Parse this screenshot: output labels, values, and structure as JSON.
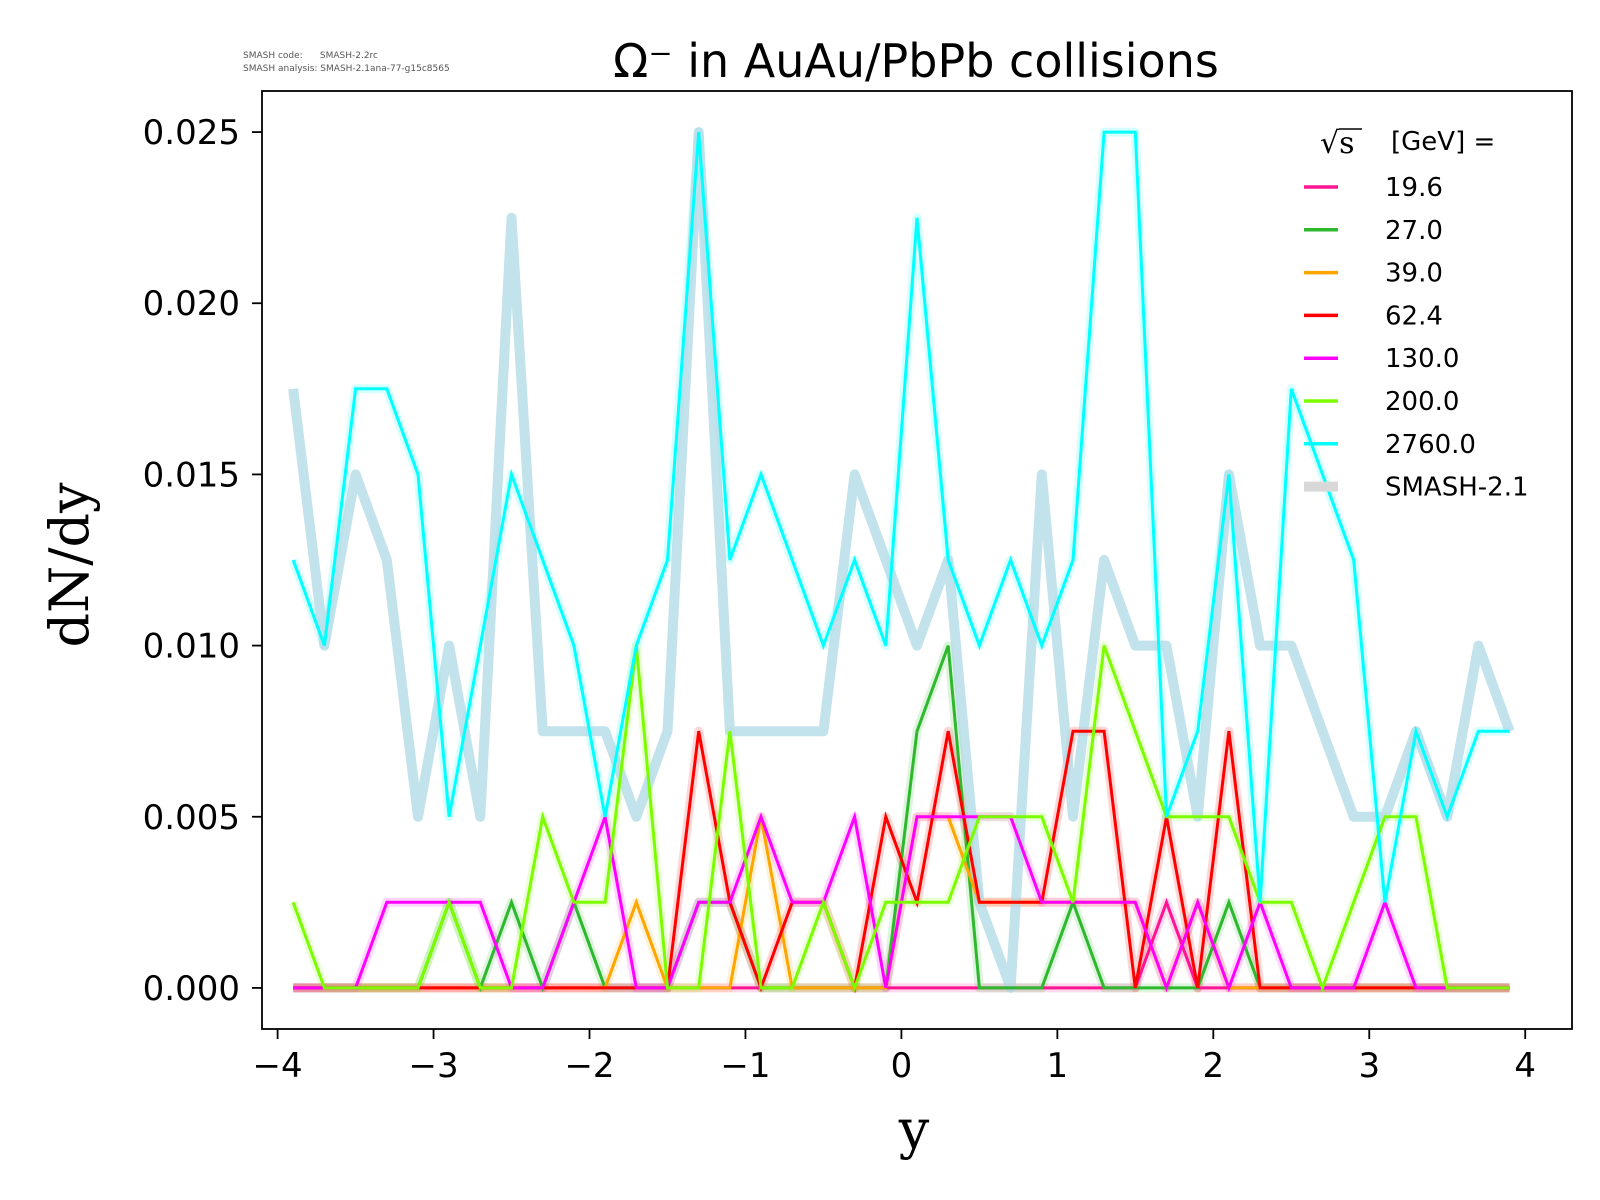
{
  "meta_text": {
    "line1": "SMASH code:      SMASH-2.2rc",
    "line2": "SMASH analysis: SMASH-2.1ana-77-g15c8565"
  },
  "chart_data": {
    "type": "line",
    "title": "Ω⁻ in AuAu/PbPb collisions",
    "xlabel": "y",
    "ylabel": "dN/dy",
    "xlim": [
      -4.1,
      4.3
    ],
    "ylim": [
      -0.0012,
      0.0262
    ],
    "xticks": [
      -4,
      -3,
      -2,
      -1,
      0,
      1,
      2,
      3,
      4
    ],
    "xtick_labels": [
      "−4",
      "−3",
      "−2",
      "−1",
      "0",
      "1",
      "2",
      "3",
      "4"
    ],
    "yticks": [
      0,
      0.005,
      0.01,
      0.015,
      0.02,
      0.025
    ],
    "ytick_labels": [
      "0.000",
      "0.005",
      "0.010",
      "0.015",
      "0.020",
      "0.025"
    ],
    "grid": false,
    "legend": {
      "placement": "top-right",
      "title_symbol": "√s",
      "title_text": "[GeV] ="
    },
    "x": [
      -3.9,
      -3.7,
      -3.5,
      -3.3,
      -3.1,
      -2.9,
      -2.7,
      -2.5,
      -2.3,
      -2.1,
      -1.9,
      -1.7,
      -1.5,
      -1.3,
      -1.1,
      -0.9,
      -0.7,
      -0.5,
      -0.3,
      -0.1,
      0.1,
      0.3,
      0.5,
      0.7,
      0.9,
      1.1,
      1.3,
      1.5,
      1.7,
      1.9,
      2.1,
      2.3,
      2.5,
      2.7,
      2.9,
      3.1,
      3.3,
      3.5,
      3.7,
      3.9
    ],
    "series": [
      {
        "name": "19.6",
        "color": "#ff1493",
        "values": [
          0,
          0,
          0,
          0,
          0,
          0,
          0,
          0,
          0,
          0,
          0,
          0,
          0,
          0,
          0,
          0,
          0,
          0,
          0,
          0,
          0,
          0,
          0,
          0,
          0,
          0,
          0,
          0,
          0.0025,
          0,
          0,
          0,
          0,
          0,
          0,
          0,
          0,
          0,
          0,
          0
        ]
      },
      {
        "name": "27.0",
        "color": "#2db82d",
        "values": [
          0,
          0,
          0,
          0,
          0,
          0.0025,
          0,
          0.0025,
          0,
          0.0025,
          0,
          0,
          0,
          0.0025,
          0.0025,
          0,
          0,
          0,
          0,
          0,
          0.0075,
          0.01,
          0,
          0,
          0,
          0.0025,
          0,
          0,
          0,
          0,
          0.0025,
          0,
          0,
          0,
          0,
          0,
          0,
          0,
          0,
          0
        ]
      },
      {
        "name": "39.0",
        "color": "#ffa500",
        "values": [
          0,
          0,
          0,
          0,
          0,
          0,
          0,
          0,
          0,
          0,
          0,
          0.0025,
          0,
          0,
          0,
          0.005,
          0,
          0,
          0,
          0,
          0.005,
          0.005,
          0.0025,
          0.0025,
          0.0025,
          0.0025,
          0.0025,
          0.0025,
          0,
          0.0025,
          0,
          0,
          0,
          0,
          0,
          0,
          0,
          0,
          0,
          0
        ]
      },
      {
        "name": "62.4",
        "color": "#ff0000",
        "values": [
          0,
          0,
          0,
          0,
          0,
          0,
          0,
          0,
          0,
          0,
          0,
          0,
          0,
          0.0075,
          0.0025,
          0,
          0.0025,
          0.0025,
          0,
          0.005,
          0.0025,
          0.0075,
          0.0025,
          0.0025,
          0.0025,
          0.0075,
          0.0075,
          0,
          0.005,
          0,
          0.0075,
          0,
          0,
          0,
          0,
          0,
          0,
          0,
          0,
          0
        ]
      },
      {
        "name": "130.0",
        "color": "#ff00ff",
        "values": [
          0,
          0,
          0,
          0.0025,
          0.0025,
          0.0025,
          0.0025,
          0,
          0,
          0.0025,
          0.005,
          0,
          0,
          0.0025,
          0.0025,
          0.005,
          0.0025,
          0.0025,
          0.005,
          0,
          0.005,
          0.005,
          0.005,
          0.005,
          0.0025,
          0.0025,
          0.0025,
          0.0025,
          0,
          0.0025,
          0,
          0.0025,
          0,
          0,
          0,
          0.0025,
          0,
          0,
          0,
          0
        ]
      },
      {
        "name": "200.0",
        "color": "#7cfc00",
        "values": [
          0.0025,
          0,
          0,
          0,
          0,
          0.0025,
          0,
          0,
          0.005,
          0.0025,
          0.0025,
          0.01,
          0,
          0,
          0.0075,
          0,
          0,
          0.0025,
          0,
          0.0025,
          0.0025,
          0.0025,
          0.005,
          0.005,
          0.005,
          0.0025,
          0.01,
          0.0075,
          0.005,
          0.005,
          0.005,
          0.0025,
          0.0025,
          0,
          0.0025,
          0.005,
          0.005,
          0,
          0,
          0
        ]
      },
      {
        "name": "2760.0",
        "color": "#00ffff",
        "values": [
          0.0125,
          0.01,
          0.0175,
          0.0175,
          0.015,
          0.005,
          0.01,
          0.015,
          0.0125,
          0.01,
          0.005,
          0.01,
          0.0125,
          0.025,
          0.0125,
          0.015,
          0.0125,
          0.01,
          0.0125,
          0.01,
          0.0225,
          0.0125,
          0.01,
          0.0125,
          0.01,
          0.0125,
          0.025,
          0.025,
          0.005,
          0.0075,
          0.015,
          0.0025,
          0.0175,
          0.015,
          0.0125,
          0.0025,
          0.0075,
          0.005,
          0.0075,
          0.0075
        ]
      },
      {
        "name": "SMASH-2.1",
        "color": "#add8e6",
        "values": [
          0.0175,
          0.01,
          0.015,
          0.0125,
          0.005,
          0.01,
          0.005,
          0.0225,
          0.0075,
          0.0075,
          0.0075,
          0.005,
          0.0075,
          0.025,
          0.0075,
          0.0075,
          0.0075,
          0.0075,
          0.015,
          0.0125,
          0.01,
          0.0125,
          0.0025,
          0,
          0.015,
          0.005,
          0.0125,
          0.01,
          0.01,
          0.005,
          0.015,
          0.01,
          0.01,
          0.0075,
          0.005,
          0.005,
          0.0075,
          0.005,
          0.01,
          0.0075
        ]
      }
    ]
  }
}
